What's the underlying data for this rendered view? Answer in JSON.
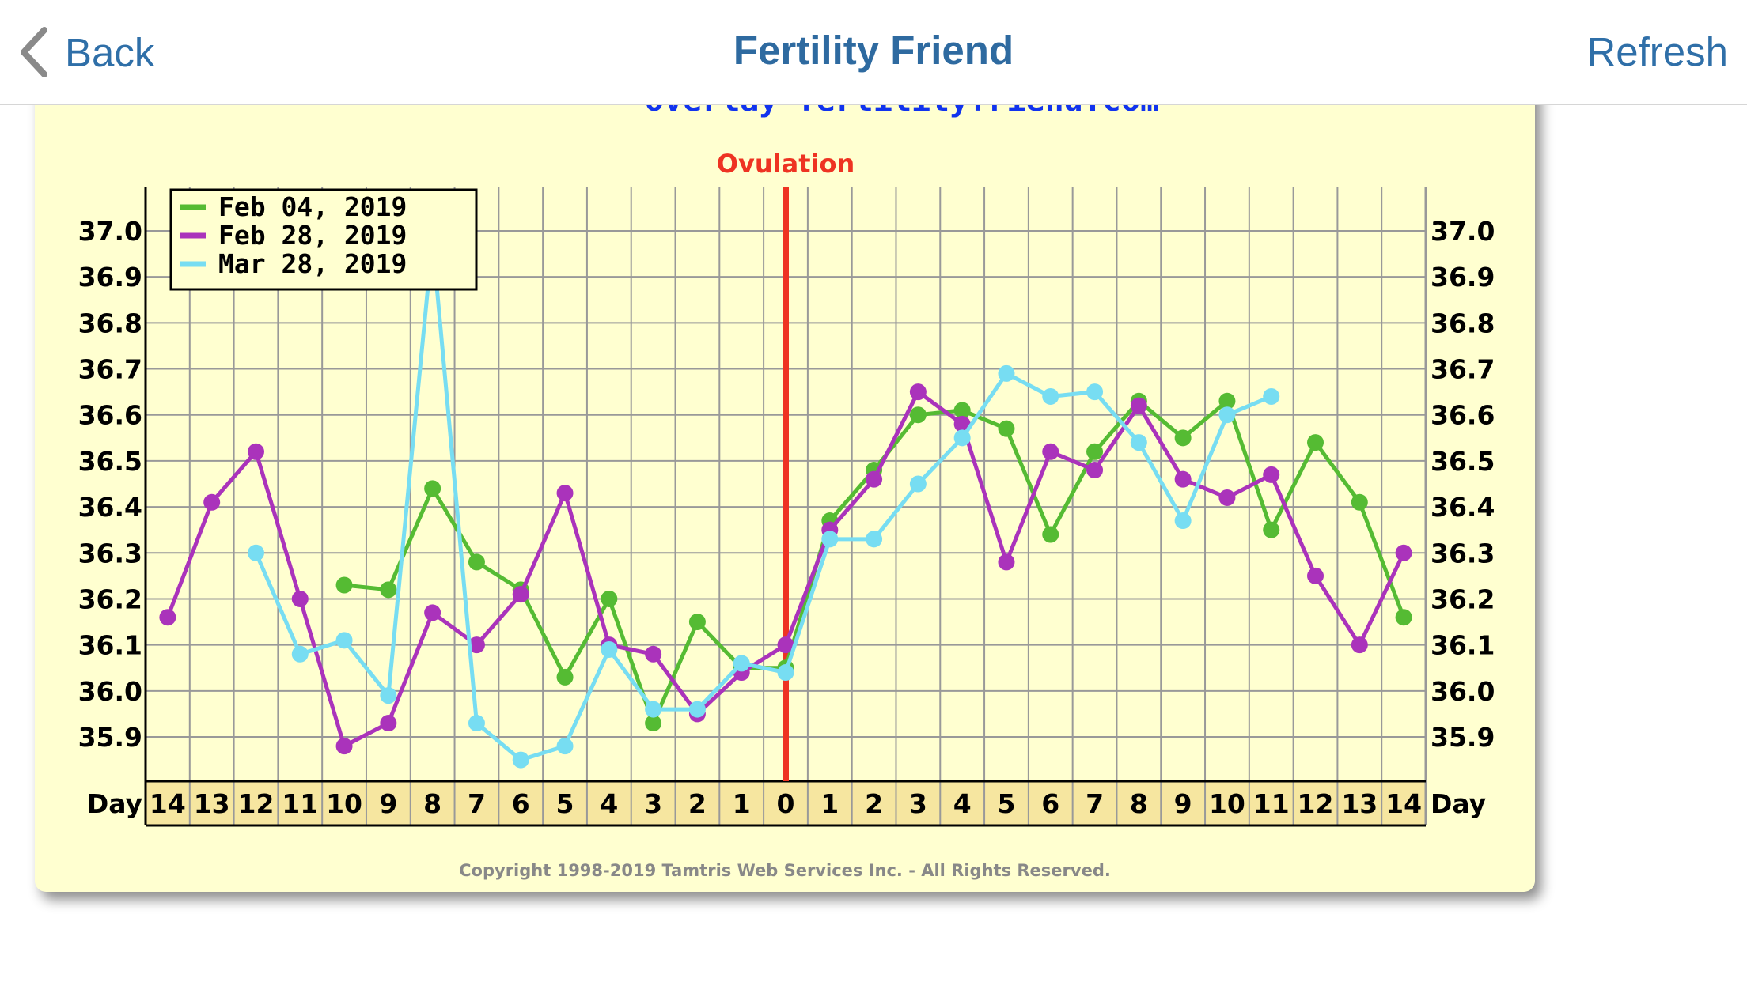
{
  "nav": {
    "back_label": "Back",
    "title": "Fertility Friend",
    "refresh_label": "Refresh"
  },
  "chart_data": {
    "type": "line",
    "title": "Ovulation",
    "watermark": "overlay fertilityfriend.com",
    "copyright": "Copyright 1998-2019 Tamtris Web Services Inc. - All Rights Reserved.",
    "day_label": "Day",
    "x": [
      -14,
      -13,
      -12,
      -11,
      -10,
      -9,
      -8,
      -7,
      -6,
      -5,
      -4,
      -3,
      -2,
      -1,
      0,
      1,
      2,
      3,
      4,
      5,
      6,
      7,
      8,
      9,
      10,
      11,
      12,
      13,
      14
    ],
    "x_tick_labels": [
      "14",
      "13",
      "12",
      "11",
      "10",
      "9",
      "8",
      "7",
      "6",
      "5",
      "4",
      "3",
      "2",
      "1",
      "0",
      "1",
      "2",
      "3",
      "4",
      "5",
      "6",
      "7",
      "8",
      "9",
      "10",
      "11",
      "12",
      "13",
      "14"
    ],
    "ovulation_day": 0,
    "ylim": [
      35.8,
      37.1
    ],
    "y_ticks": [
      "37.0",
      "36.9",
      "36.8",
      "36.7",
      "36.6",
      "36.5",
      "36.4",
      "36.3",
      "36.2",
      "36.1",
      "36.0",
      "35.9"
    ],
    "grid": true,
    "legend_position": "top-left",
    "colors": {
      "ovulation_line": "#ee3322",
      "ovulation_label": "#ee3322",
      "grid": "#999999",
      "card_bg": "#ffffd0",
      "day_row_bg": "#f6e6a0",
      "watermark": "#1133ee",
      "copyright": "#888888",
      "nav_blue": "#2f6fa8"
    },
    "series": [
      {
        "name": "Feb 04, 2019",
        "color": "#55bb33",
        "values": [
          null,
          null,
          null,
          null,
          36.23,
          36.22,
          36.44,
          36.28,
          36.22,
          36.03,
          36.2,
          35.93,
          36.15,
          36.05,
          36.05,
          36.37,
          36.48,
          36.6,
          36.61,
          36.57,
          36.34,
          36.52,
          36.63,
          36.55,
          36.63,
          36.35,
          36.54,
          36.41,
          36.16
        ]
      },
      {
        "name": "Feb 28, 2019",
        "color": "#aa33bb",
        "values": [
          36.16,
          36.41,
          36.52,
          36.2,
          35.88,
          35.93,
          36.17,
          36.1,
          36.21,
          36.43,
          36.1,
          36.08,
          35.95,
          36.04,
          36.1,
          36.35,
          36.46,
          36.65,
          36.58,
          36.28,
          36.52,
          36.48,
          36.62,
          36.46,
          36.42,
          36.47,
          36.25,
          36.1,
          36.3
        ]
      },
      {
        "name": "Mar 28, 2019",
        "color": "#77ddf2",
        "values": [
          null,
          null,
          36.3,
          36.08,
          36.11,
          35.99,
          36.98,
          35.93,
          35.85,
          35.88,
          36.09,
          35.96,
          35.96,
          36.06,
          36.04,
          36.33,
          36.33,
          36.45,
          36.55,
          36.69,
          36.64,
          36.65,
          36.54,
          36.37,
          36.6,
          36.64,
          null,
          null,
          null
        ]
      }
    ]
  }
}
